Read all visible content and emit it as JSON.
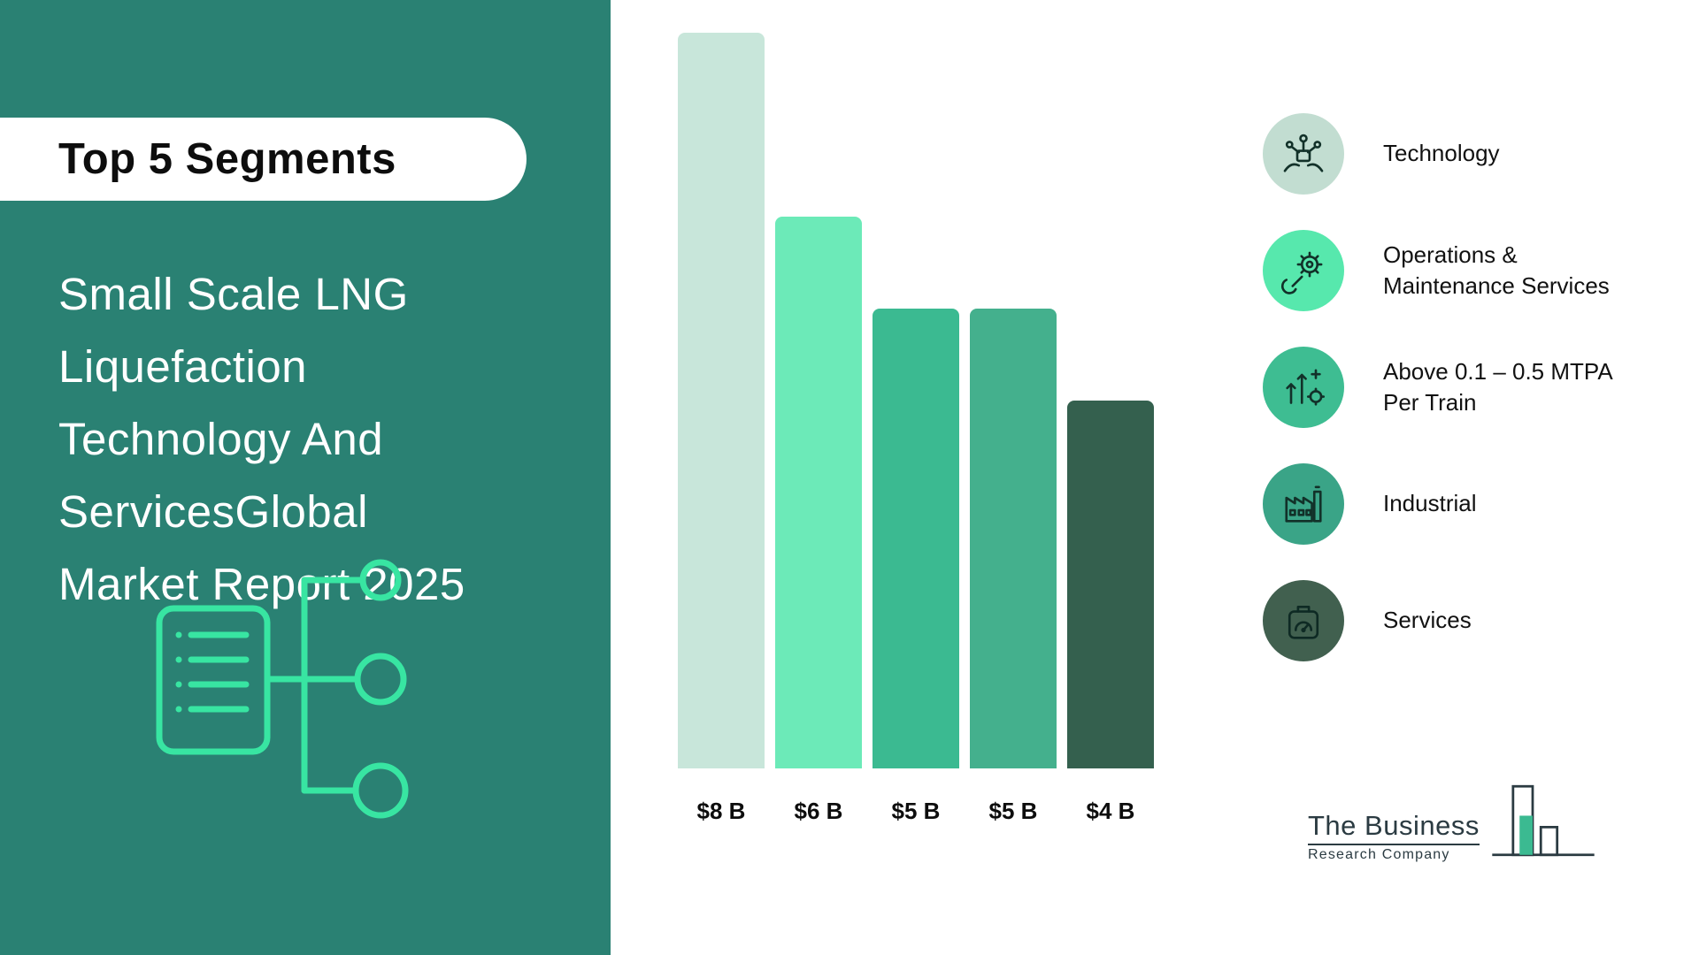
{
  "left_panel": {
    "badge": "Top 5 Segments",
    "title_lines": [
      "Small Scale LNG",
      "Liquefaction",
      "Technology And",
      "ServicesGlobal",
      "Market Report 2025"
    ],
    "bg_color": "#2a8173",
    "accent_color": "#38e5a2"
  },
  "chart_data": {
    "type": "bar",
    "title": "Top 5 Segments",
    "categories": [
      "Technology",
      "Operations & Maintenance Services",
      "Above 0.1 – 0.5 MTPA Per Train",
      "Industrial",
      "Services"
    ],
    "values": [
      8,
      6,
      5,
      5,
      4
    ],
    "labels": [
      "$8 B",
      "$6 B",
      "$5 B",
      "$5 B",
      "$4 B"
    ],
    "unit": "billion USD",
    "ylim": [
      0,
      8
    ],
    "grid": false,
    "legend_position": "right",
    "bar_colors": [
      "#c8e6da",
      "#6ceab8",
      "#3bba91",
      "#44b08d",
      "#34604e"
    ]
  },
  "legend": {
    "items": [
      {
        "label": "Technology",
        "icon": "technology-network-hands-icon",
        "color": "#c2ddd1"
      },
      {
        "label": "Operations & Maintenance Services",
        "icon": "wrench-gear-icon",
        "color": "#57e8ad"
      },
      {
        "label": "Above 0.1 – 0.5 MTPA Per Train",
        "icon": "growth-arrows-icon",
        "color": "#3ebd92"
      },
      {
        "label": "Industrial",
        "icon": "factory-icon",
        "color": "#3aa487"
      },
      {
        "label": "Services",
        "icon": "scale-icon",
        "color": "#41604f"
      }
    ]
  },
  "footer": {
    "logo_line1": "The Business",
    "logo_line2": "Research Company"
  }
}
